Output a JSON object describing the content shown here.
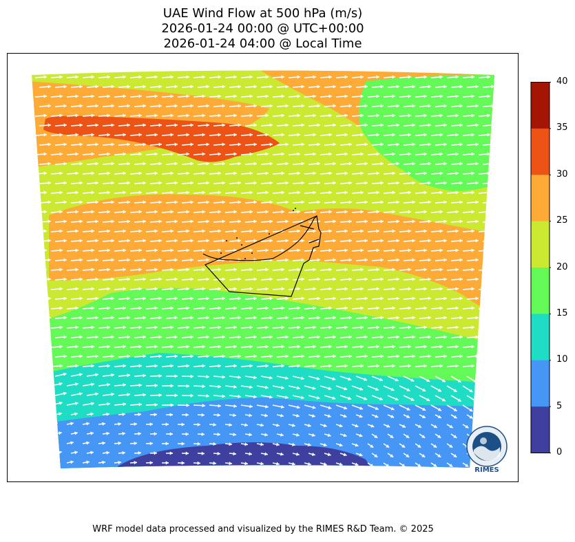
{
  "title": {
    "line1": "UAE Wind Flow at 500 hPa (m/s)",
    "line2": "2026-01-24 00:00 @ UTC+00:00",
    "line3": "2026-01-24 04:00 @ Local Time"
  },
  "colorbar": {
    "ticks": [
      "0",
      "5",
      "10",
      "15",
      "20",
      "25",
      "30",
      "35",
      "40"
    ],
    "bins": [
      {
        "min": 0,
        "max": 5,
        "color": "#3f3f9f"
      },
      {
        "min": 5,
        "max": 10,
        "color": "#4596f5"
      },
      {
        "min": 10,
        "max": 15,
        "color": "#1fdcc4"
      },
      {
        "min": 15,
        "max": 20,
        "color": "#63f957"
      },
      {
        "min": 20,
        "max": 25,
        "color": "#cbe930"
      },
      {
        "min": 25,
        "max": 30,
        "color": "#fdab36"
      },
      {
        "min": 30,
        "max": 35,
        "color": "#ec5314"
      },
      {
        "min": 35,
        "max": 40,
        "color": "#a41504"
      }
    ]
  },
  "map": {
    "vector_color": "#ffffff",
    "boundary_color": "#000000",
    "wind_direction": "westerly, turning north-westerly in the south-east"
  },
  "logo": {
    "text": "RIMES",
    "ring_text": "Regional Integrated Multi-Hazard Early Warning System",
    "color": "#1c4f86"
  },
  "footer": "WRF model data processed and visualized by the RIMES R&D Team. © 2025"
}
